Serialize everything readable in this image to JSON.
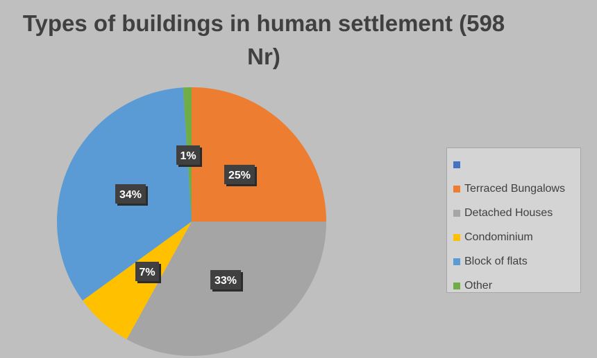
{
  "chart_data": {
    "type": "pie",
    "title": "Types of buildings in human settlement (598\nNr)",
    "categories": [
      "",
      "Terraced Bungalows",
      "Detached Houses",
      "Condominium",
      "Block of flats",
      "Other"
    ],
    "values": [
      0,
      25,
      33,
      7,
      34,
      1
    ],
    "labels": [
      "",
      "25%",
      "33%",
      "7%",
      "34%",
      "1%"
    ],
    "colors": [
      "#4472c4",
      "#ed7d31",
      "#a5a5a5",
      "#ffc000",
      "#5b9bd5",
      "#70ad47"
    ],
    "legend_position": "right"
  }
}
